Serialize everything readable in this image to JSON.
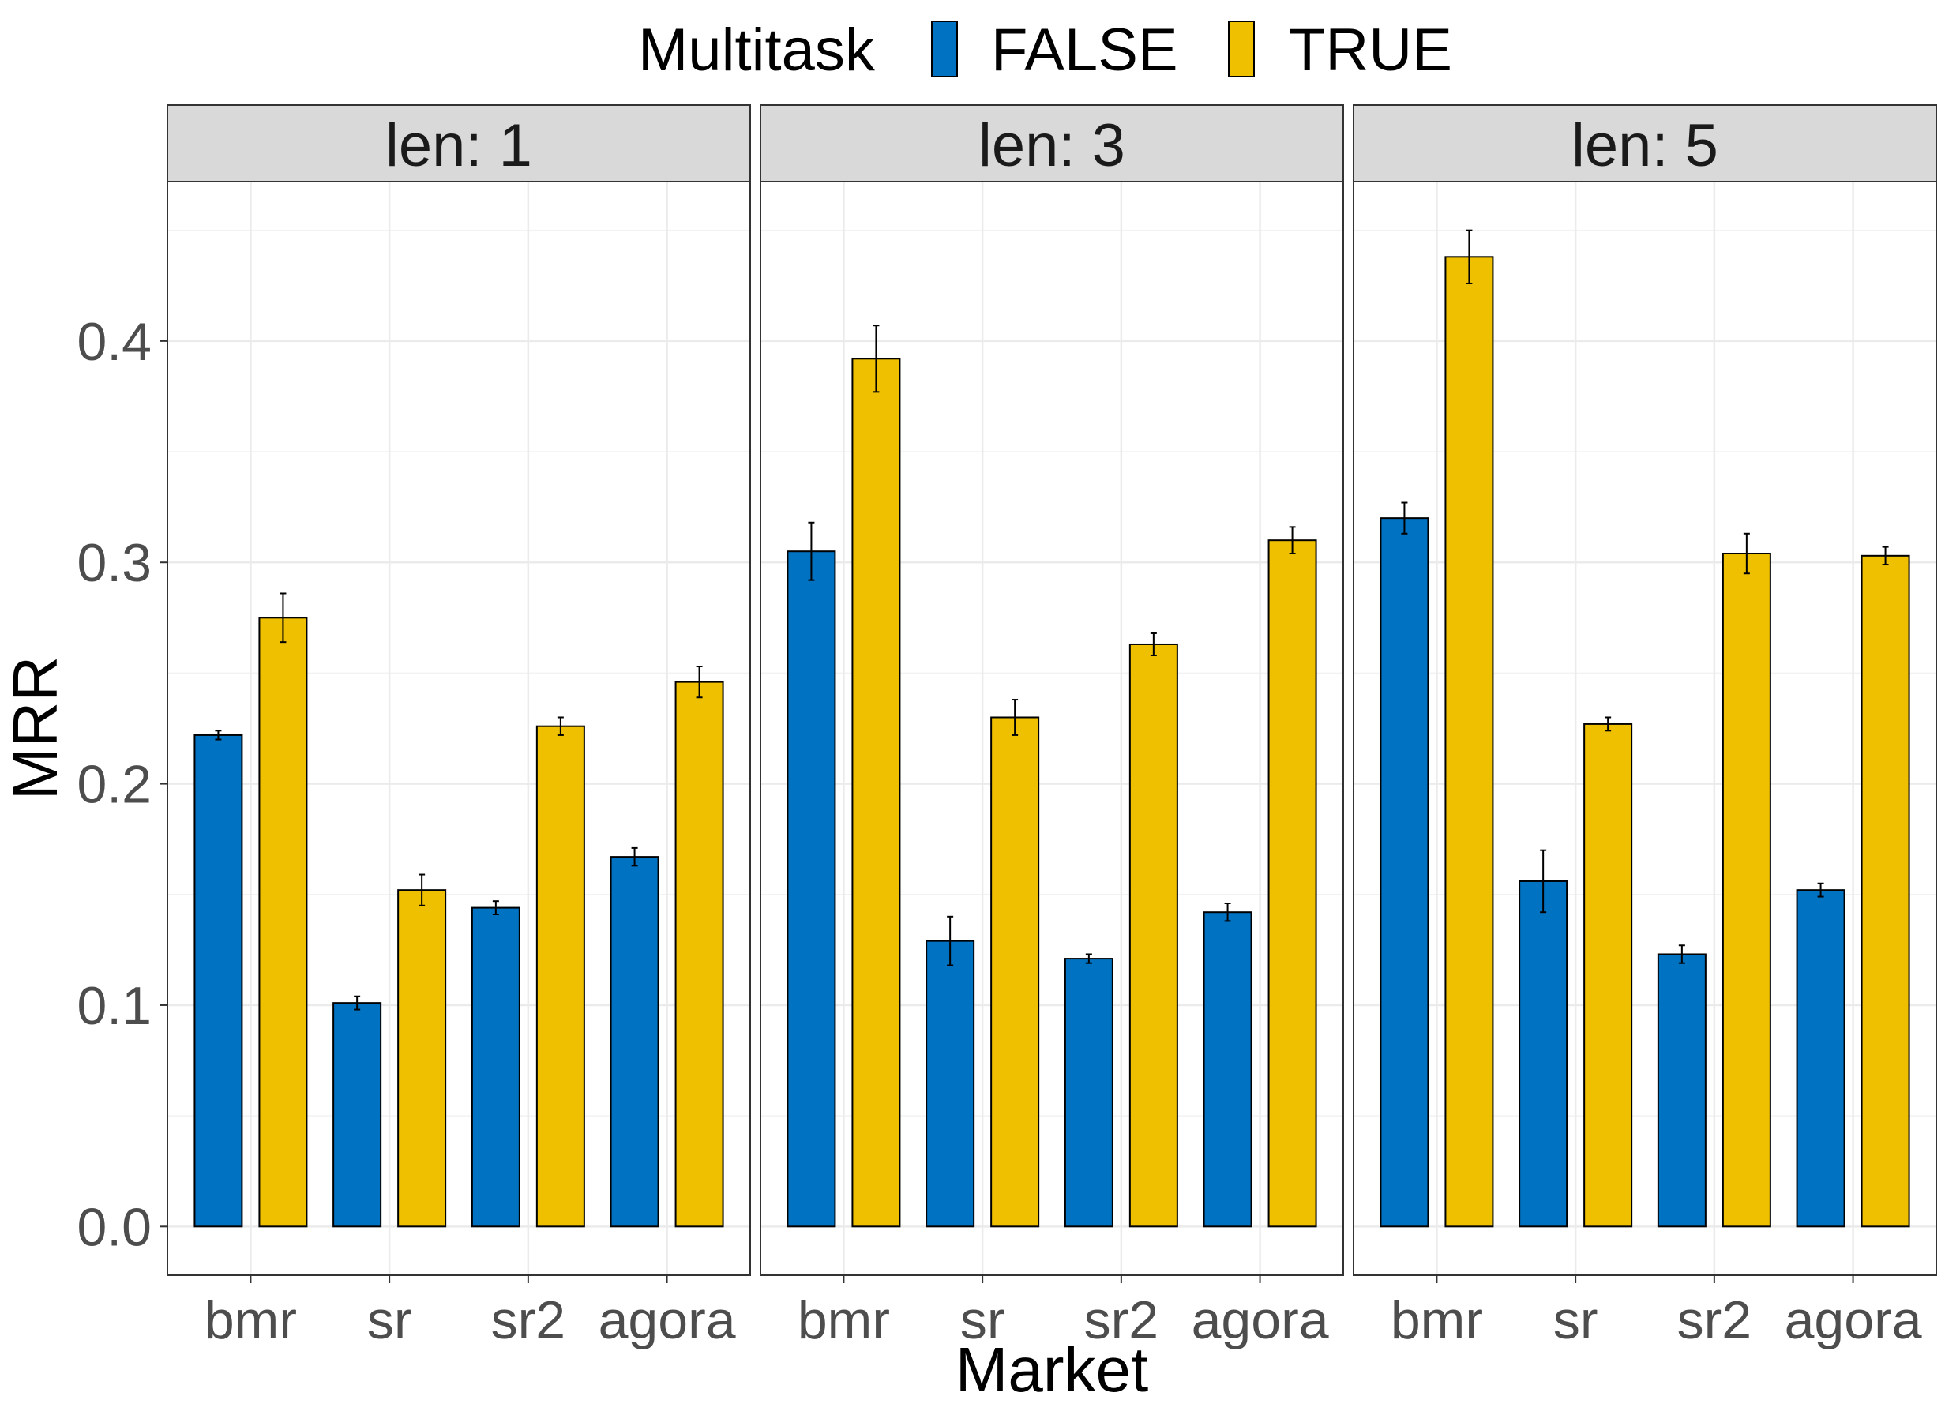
{
  "chart_data": {
    "type": "bar",
    "facet_variable": "len",
    "facets": [
      {
        "label": "len: 1",
        "categories": [
          "bmr",
          "sr",
          "sr2",
          "agora"
        ],
        "series": [
          {
            "name": "FALSE",
            "values": [
              0.222,
              0.101,
              0.144,
              0.167
            ],
            "errors": [
              0.002,
              0.003,
              0.003,
              0.004
            ]
          },
          {
            "name": "TRUE",
            "values": [
              0.275,
              0.152,
              0.226,
              0.246
            ],
            "errors": [
              0.011,
              0.007,
              0.004,
              0.007
            ]
          }
        ]
      },
      {
        "label": "len: 3",
        "categories": [
          "bmr",
          "sr",
          "sr2",
          "agora"
        ],
        "series": [
          {
            "name": "FALSE",
            "values": [
              0.305,
              0.129,
              0.121,
              0.142
            ],
            "errors": [
              0.013,
              0.011,
              0.002,
              0.004
            ]
          },
          {
            "name": "TRUE",
            "values": [
              0.392,
              0.23,
              0.263,
              0.31
            ],
            "errors": [
              0.015,
              0.008,
              0.005,
              0.006
            ]
          }
        ]
      },
      {
        "label": "len: 5",
        "categories": [
          "bmr",
          "sr",
          "sr2",
          "agora"
        ],
        "series": [
          {
            "name": "FALSE",
            "values": [
              0.32,
              0.156,
              0.123,
              0.152
            ],
            "errors": [
              0.007,
              0.014,
              0.004,
              0.003
            ]
          },
          {
            "name": "TRUE",
            "values": [
              0.438,
              0.227,
              0.304,
              0.303
            ],
            "errors": [
              0.012,
              0.003,
              0.009,
              0.004
            ]
          }
        ]
      }
    ],
    "xlabel": "Market",
    "ylabel": "MRR",
    "ylim": [
      -0.022,
      0.472
    ],
    "yticks": [
      0.0,
      0.1,
      0.2,
      0.3,
      0.4
    ],
    "ytick_labels": [
      "0.0",
      "0.1",
      "0.2",
      "0.3",
      "0.4"
    ],
    "grid": true,
    "legend": {
      "title": "Multitask",
      "entries": [
        "FALSE",
        "TRUE"
      ],
      "position": "top"
    },
    "colors": {
      "FALSE": "#0072C2",
      "TRUE": "#EFC000"
    }
  }
}
